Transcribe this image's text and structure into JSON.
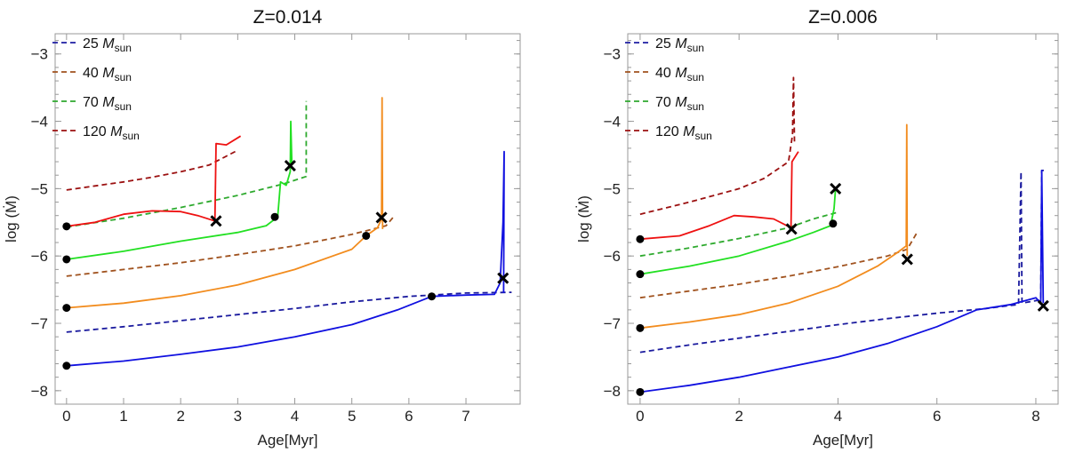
{
  "chart_data": [
    {
      "type": "line",
      "title": "Z=0.014",
      "xlabel": "Age[Myr]",
      "ylabel": "log (Ṁ)",
      "xlim": [
        -0.2,
        7.95
      ],
      "ylim": [
        -8.2,
        -2.7
      ],
      "xticks": [
        0,
        1,
        2,
        3,
        4,
        5,
        6,
        7
      ],
      "yticks": [
        -8,
        -7,
        -6,
        -5,
        -4,
        -3
      ],
      "legend_position": "top-left",
      "legend": [
        {
          "label": "25",
          "unit": "M",
          "sub": "sun",
          "color": "#1f1fa3"
        },
        {
          "label": "40",
          "unit": "M",
          "sub": "sun",
          "color": "#a0521e"
        },
        {
          "label": "70",
          "unit": "M",
          "sub": "sun",
          "color": "#2fa82f"
        },
        {
          "label": "120",
          "unit": "M",
          "sub": "sun",
          "color": "#9b1010"
        }
      ],
      "series": [
        {
          "name": "25 Msun dashed",
          "color": "#1a1a9e",
          "dash": true,
          "points": [
            [
              0,
              -7.13
            ],
            [
              1,
              -7.05
            ],
            [
              2,
              -6.96
            ],
            [
              3,
              -6.87
            ],
            [
              4,
              -6.78
            ],
            [
              5,
              -6.68
            ],
            [
              6,
              -6.6
            ],
            [
              7,
              -6.55
            ],
            [
              7.8,
              -6.54
            ]
          ]
        },
        {
          "name": "40 Msun dashed",
          "color": "#a0521e",
          "dash": true,
          "points": [
            [
              0,
              -6.3
            ],
            [
              1,
              -6.2
            ],
            [
              2,
              -6.1
            ],
            [
              3,
              -5.98
            ],
            [
              4,
              -5.85
            ],
            [
              5,
              -5.68
            ],
            [
              5.6,
              -5.55
            ],
            [
              5.75,
              -5.4
            ]
          ]
        },
        {
          "name": "70 Msun dashed",
          "color": "#2faa2f",
          "dash": true,
          "points": [
            [
              0,
              -5.57
            ],
            [
              1,
              -5.44
            ],
            [
              2,
              -5.28
            ],
            [
              3,
              -5.1
            ],
            [
              3.8,
              -4.93
            ],
            [
              4.2,
              -4.82
            ],
            [
              4.2,
              -3.7
            ]
          ]
        },
        {
          "name": "120 Msun dashed",
          "color": "#9b1010",
          "dash": true,
          "points": [
            [
              0,
              -5.02
            ],
            [
              0.5,
              -4.96
            ],
            [
              1,
              -4.9
            ],
            [
              1.5,
              -4.83
            ],
            [
              2,
              -4.75
            ],
            [
              2.5,
              -4.65
            ],
            [
              3.0,
              -4.43
            ]
          ]
        },
        {
          "name": "25 Msun",
          "color": "#1010e0",
          "dash": false,
          "points": [
            [
              0,
              -7.63
            ],
            [
              1,
              -7.56
            ],
            [
              2,
              -7.46
            ],
            [
              3,
              -7.35
            ],
            [
              4,
              -7.2
            ],
            [
              5,
              -7.02
            ],
            [
              5.8,
              -6.8
            ],
            [
              6.4,
              -6.6
            ],
            [
              7,
              -6.58
            ],
            [
              7.5,
              -6.57
            ],
            [
              7.6,
              -6.4
            ],
            [
              7.65,
              -5.5
            ],
            [
              7.67,
              -4.45
            ],
            [
              7.66,
              -6.55
            ]
          ]
        },
        {
          "name": "40 Msun",
          "color": "#f28c1e",
          "dash": false,
          "points": [
            [
              0,
              -6.77
            ],
            [
              1,
              -6.7
            ],
            [
              2,
              -6.59
            ],
            [
              3,
              -6.43
            ],
            [
              4,
              -6.2
            ],
            [
              5,
              -5.9
            ],
            [
              5.25,
              -5.7
            ],
            [
              5.45,
              -5.58
            ],
            [
              5.52,
              -5.45
            ],
            [
              5.53,
              -3.65
            ],
            [
              5.54,
              -5.6
            ]
          ]
        },
        {
          "name": "70 Msun",
          "color": "#22e022",
          "dash": false,
          "points": [
            [
              0,
              -6.05
            ],
            [
              1,
              -5.93
            ],
            [
              2,
              -5.78
            ],
            [
              3,
              -5.65
            ],
            [
              3.5,
              -5.55
            ],
            [
              3.7,
              -5.42
            ],
            [
              3.75,
              -4.9
            ],
            [
              3.85,
              -4.95
            ],
            [
              3.92,
              -4.75
            ],
            [
              3.93,
              -4.0
            ],
            [
              3.95,
              -4.65
            ]
          ]
        },
        {
          "name": "120 Msun",
          "color": "#ee1111",
          "dash": false,
          "points": [
            [
              0,
              -5.56
            ],
            [
              0.5,
              -5.5
            ],
            [
              1,
              -5.38
            ],
            [
              1.5,
              -5.33
            ],
            [
              2,
              -5.34
            ],
            [
              2.3,
              -5.4
            ],
            [
              2.6,
              -5.48
            ],
            [
              2.62,
              -4.33
            ],
            [
              2.8,
              -4.35
            ],
            [
              3.05,
              -4.22
            ]
          ]
        }
      ],
      "dots": [
        [
          0,
          -7.63
        ],
        [
          0,
          -6.77
        ],
        [
          0,
          -6.05
        ],
        [
          0,
          -5.56
        ],
        [
          6.4,
          -6.6
        ],
        [
          5.25,
          -5.7
        ],
        [
          3.65,
          -5.42
        ]
      ],
      "crosses": [
        [
          7.65,
          -6.33
        ],
        [
          5.52,
          -5.43
        ],
        [
          3.92,
          -4.66
        ],
        [
          2.62,
          -5.48
        ]
      ]
    },
    {
      "type": "line",
      "title": "Z=0.006",
      "xlabel": "Age[Myr]",
      "ylabel": "log (Ṁ)",
      "xlim": [
        -0.25,
        8.45
      ],
      "ylim": [
        -8.2,
        -2.7
      ],
      "xticks": [
        0,
        2,
        4,
        6,
        8
      ],
      "yticks": [
        -8,
        -7,
        -6,
        -5,
        -4,
        -3
      ],
      "legend_position": "top-left",
      "legend": [
        {
          "label": "25",
          "unit": "M",
          "sub": "sun",
          "color": "#1f1fa3"
        },
        {
          "label": "40",
          "unit": "M",
          "sub": "sun",
          "color": "#a0521e"
        },
        {
          "label": "70",
          "unit": "M",
          "sub": "sun",
          "color": "#2fa82f"
        },
        {
          "label": "120",
          "unit": "M",
          "sub": "sun",
          "color": "#9b1010"
        }
      ],
      "series": [
        {
          "name": "25 Msun dashed",
          "color": "#1a1a9e",
          "dash": true,
          "points": [
            [
              0,
              -7.43
            ],
            [
              1,
              -7.32
            ],
            [
              2,
              -7.22
            ],
            [
              3,
              -7.12
            ],
            [
              4,
              -7.02
            ],
            [
              5,
              -6.93
            ],
            [
              6,
              -6.85
            ],
            [
              7,
              -6.78
            ],
            [
              7.65,
              -6.72
            ],
            [
              7.7,
              -4.75
            ],
            [
              7.72,
              -6.7
            ],
            [
              8.1,
              -6.65
            ],
            [
              8.12,
              -4.73
            ],
            [
              8.16,
              -4.73
            ]
          ]
        },
        {
          "name": "40 Msun dashed",
          "color": "#a0521e",
          "dash": true,
          "points": [
            [
              0,
              -6.62
            ],
            [
              1,
              -6.52
            ],
            [
              2,
              -6.42
            ],
            [
              3,
              -6.3
            ],
            [
              4,
              -6.16
            ],
            [
              5,
              -6.0
            ],
            [
              5.4,
              -5.9
            ],
            [
              5.6,
              -5.65
            ]
          ]
        },
        {
          "name": "70 Msun dashed",
          "color": "#2faa2f",
          "dash": true,
          "points": [
            [
              0,
              -6.0
            ],
            [
              1,
              -5.88
            ],
            [
              2,
              -5.74
            ],
            [
              3,
              -5.58
            ],
            [
              3.5,
              -5.45
            ],
            [
              4,
              -5.35
            ]
          ]
        },
        {
          "name": "120 Msun dashed",
          "color": "#9b1010",
          "dash": true,
          "points": [
            [
              0,
              -5.38
            ],
            [
              1,
              -5.2
            ],
            [
              2,
              -5.0
            ],
            [
              2.5,
              -4.85
            ],
            [
              3.0,
              -4.6
            ],
            [
              3.08,
              -4.2
            ],
            [
              3.1,
              -3.35
            ],
            [
              3.12,
              -4.3
            ]
          ]
        },
        {
          "name": "25 Msun",
          "color": "#1010e0",
          "dash": false,
          "points": [
            [
              0,
              -8.02
            ],
            [
              1,
              -7.92
            ],
            [
              2,
              -7.8
            ],
            [
              3,
              -7.65
            ],
            [
              4,
              -7.5
            ],
            [
              5,
              -7.3
            ],
            [
              6,
              -7.05
            ],
            [
              6.8,
              -6.8
            ],
            [
              7.5,
              -6.72
            ],
            [
              8,
              -6.62
            ],
            [
              8.1,
              -6.7
            ],
            [
              8.12,
              -4.73
            ],
            [
              8.15,
              -6.7
            ]
          ]
        },
        {
          "name": "40 Msun",
          "color": "#f28c1e",
          "dash": false,
          "points": [
            [
              0,
              -7.07
            ],
            [
              1,
              -6.98
            ],
            [
              2,
              -6.87
            ],
            [
              3,
              -6.7
            ],
            [
              4,
              -6.45
            ],
            [
              4.8,
              -6.15
            ],
            [
              5.2,
              -5.95
            ],
            [
              5.38,
              -5.85
            ],
            [
              5.39,
              -4.05
            ],
            [
              5.4,
              -6.0
            ]
          ]
        },
        {
          "name": "70 Msun",
          "color": "#22e022",
          "dash": false,
          "points": [
            [
              0,
              -6.27
            ],
            [
              1,
              -6.15
            ],
            [
              2,
              -6.0
            ],
            [
              3,
              -5.78
            ],
            [
              3.5,
              -5.65
            ],
            [
              3.85,
              -5.55
            ],
            [
              3.92,
              -5.3
            ],
            [
              3.95,
              -5.0
            ]
          ]
        },
        {
          "name": "120 Msun",
          "color": "#ee1111",
          "dash": false,
          "points": [
            [
              0,
              -5.75
            ],
            [
              0.8,
              -5.7
            ],
            [
              1.4,
              -5.55
            ],
            [
              1.9,
              -5.4
            ],
            [
              2.3,
              -5.42
            ],
            [
              2.7,
              -5.45
            ],
            [
              3.05,
              -5.58
            ],
            [
              3.07,
              -4.6
            ],
            [
              3.2,
              -4.45
            ]
          ]
        }
      ],
      "dots": [
        [
          0,
          -8.02
        ],
        [
          0,
          -7.07
        ],
        [
          0,
          -6.27
        ],
        [
          0,
          -5.75
        ],
        [
          3.9,
          -5.52
        ]
      ],
      "crosses": [
        [
          8.15,
          -6.74
        ],
        [
          5.4,
          -6.05
        ],
        [
          3.95,
          -5.0
        ],
        [
          3.06,
          -5.6
        ]
      ]
    }
  ]
}
